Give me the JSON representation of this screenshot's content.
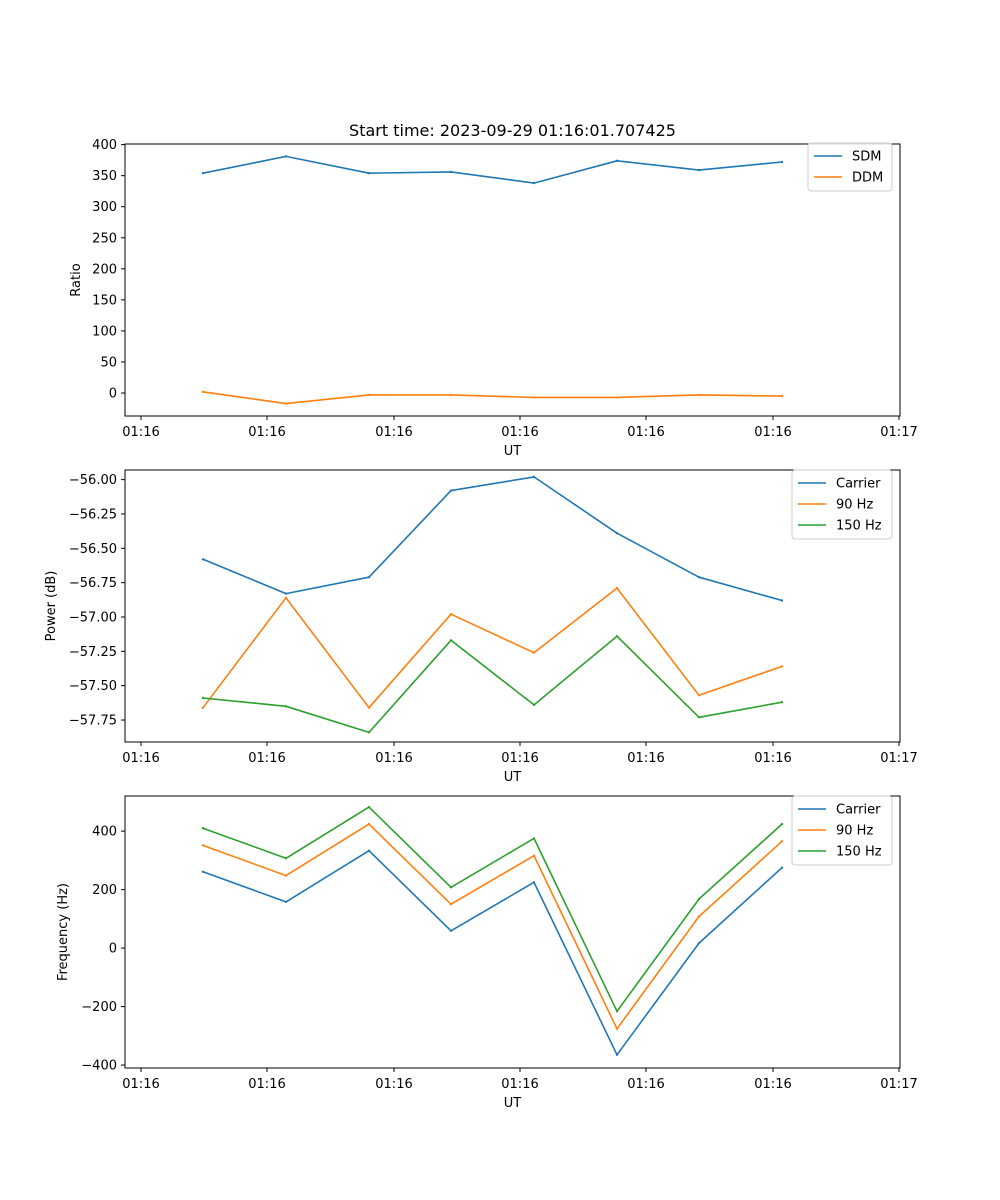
{
  "chart_data": [
    {
      "type": "line",
      "title": "Start time: 2023-09-29 01:16:01.707425",
      "xlabel": "UT",
      "ylabel": "Ratio",
      "x_tick_labels": [
        "01:16",
        "01:16",
        "01:16",
        "01:16",
        "01:16",
        "01:16",
        "01:16"
      ],
      "x_end_label": "01:17",
      "y_ticks": [
        0,
        50,
        100,
        150,
        200,
        250,
        300,
        350,
        400
      ],
      "y_tick_labels": [
        "0",
        "50",
        "100",
        "150",
        "200",
        "250",
        "300",
        "350",
        "400"
      ],
      "ylim": [
        -37,
        401
      ],
      "legend_position": "top-right",
      "series": [
        {
          "name": "SDM",
          "color": "#1f77b4",
          "values": [
            354,
            381,
            354,
            356,
            338,
            374,
            359,
            372
          ]
        },
        {
          "name": "DDM",
          "color": "#ff7f0e",
          "values": [
            2,
            -17,
            -3,
            -3,
            -7,
            -7,
            -3,
            -5
          ]
        }
      ]
    },
    {
      "type": "line",
      "title": "",
      "xlabel": "UT",
      "ylabel": "Power (dB)",
      "x_tick_labels": [
        "01:16",
        "01:16",
        "01:16",
        "01:16",
        "01:16",
        "01:16",
        "01:16"
      ],
      "x_end_label": "01:17",
      "y_ticks": [
        -57.75,
        -57.5,
        -57.25,
        -57.0,
        -56.75,
        -56.5,
        -56.25,
        -56.0
      ],
      "y_tick_labels": [
        "−57.75",
        "−57.50",
        "−57.25",
        "−57.00",
        "−56.75",
        "−56.50",
        "−56.25",
        "−56.00"
      ],
      "ylim": [
        -57.91,
        -55.93
      ],
      "legend_position": "top-right",
      "series": [
        {
          "name": "Carrier",
          "color": "#1f77b4",
          "values": [
            -56.58,
            -56.83,
            -56.71,
            -56.08,
            -55.98,
            -56.39,
            -56.71,
            -56.88
          ]
        },
        {
          "name": "90 Hz",
          "color": "#ff7f0e",
          "values": [
            -57.66,
            -56.86,
            -57.66,
            -56.98,
            -57.26,
            -56.79,
            -57.57,
            -57.36
          ]
        },
        {
          "name": "150 Hz",
          "color": "#2ca02c",
          "values": [
            -57.59,
            -57.65,
            -57.84,
            -57.17,
            -57.64,
            -57.14,
            -57.73,
            -57.62
          ]
        }
      ]
    },
    {
      "type": "line",
      "title": "",
      "xlabel": "UT",
      "ylabel": "Frequency (Hz)",
      "x_tick_labels": [
        "01:16",
        "01:16",
        "01:16",
        "01:16",
        "01:16",
        "01:16",
        "01:16"
      ],
      "x_end_label": "01:17",
      "y_ticks": [
        -400,
        -200,
        0,
        200,
        400
      ],
      "y_tick_labels": [
        "−400",
        "−200",
        "0",
        "200",
        "400"
      ],
      "ylim": [
        -410,
        520
      ],
      "legend_position": "top-right",
      "series": [
        {
          "name": "Carrier",
          "color": "#1f77b4",
          "values": [
            261,
            158,
            333,
            59,
            225,
            -365,
            17,
            275
          ]
        },
        {
          "name": "90 Hz",
          "color": "#ff7f0e",
          "values": [
            351,
            248,
            424,
            150,
            316,
            -276,
            108,
            365
          ]
        },
        {
          "name": "150 Hz",
          "color": "#2ca02c",
          "values": [
            410,
            307,
            482,
            208,
            375,
            -216,
            168,
            424
          ]
        }
      ]
    }
  ]
}
